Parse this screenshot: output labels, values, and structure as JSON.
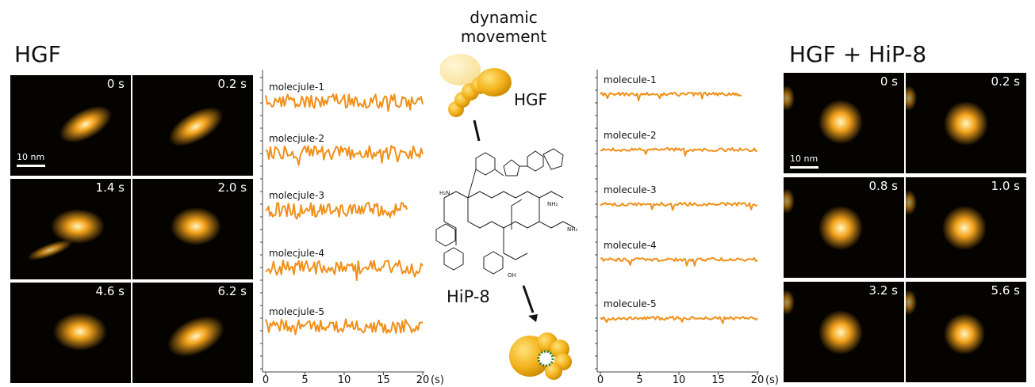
{
  "left_title": "HGF",
  "right_title": "HGF + HiP-8",
  "center": {
    "movement_line1": "dynamic",
    "movement_line2": "movement",
    "hgf_label": "HGF",
    "peptide_label": "HiP-8"
  },
  "scale_bar_label": "10 nm",
  "left_tiles": [
    "0 s",
    "0.2 s",
    "1.4 s",
    "2.0 s",
    "4.6 s",
    "6.2 s"
  ],
  "right_tiles": [
    "0 s",
    "0.2 s",
    "0.8 s",
    "1.0 s",
    "3.2 s",
    "5.6 s"
  ],
  "colors": {
    "trace": "#f0901a",
    "tile_bg": "#050300",
    "blob": "#f3a21c"
  },
  "chart_data": [
    {
      "type": "line",
      "x_ticks": [
        "0",
        "5",
        "10",
        "15",
        "20"
      ],
      "x_unit": "(s)",
      "xlim": [
        0,
        20
      ],
      "series": [
        {
          "name": "molecjule-1",
          "x_end": 20,
          "amplitude": "high"
        },
        {
          "name": "molecjule-2",
          "x_end": 20,
          "amplitude": "high"
        },
        {
          "name": "molecjule-3",
          "x_end": 18,
          "amplitude": "high"
        },
        {
          "name": "molecjule-4",
          "x_end": 20,
          "amplitude": "high"
        },
        {
          "name": "molecjule-5",
          "x_end": 20,
          "amplitude": "high"
        }
      ]
    },
    {
      "type": "line",
      "x_ticks": [
        "0",
        "5",
        "10",
        "15",
        "20"
      ],
      "x_unit": "(s)",
      "xlim": [
        0,
        20
      ],
      "series": [
        {
          "name": "molecule-1",
          "x_end": 18,
          "amplitude": "low"
        },
        {
          "name": "molecule-2",
          "x_end": 20,
          "amplitude": "low"
        },
        {
          "name": "molecule-3",
          "x_end": 20,
          "amplitude": "low"
        },
        {
          "name": "molecule-4",
          "x_end": 20,
          "amplitude": "low"
        },
        {
          "name": "molecule-5",
          "x_end": 20,
          "amplitude": "low"
        }
      ]
    }
  ]
}
